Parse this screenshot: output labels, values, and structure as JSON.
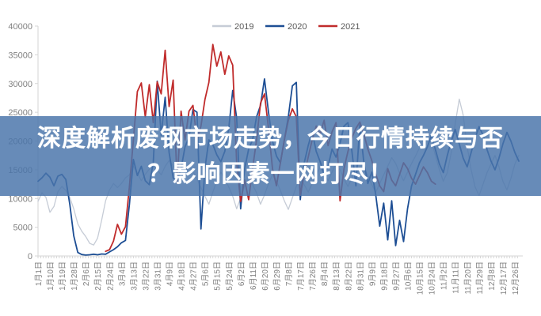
{
  "banner": {
    "line1": "深度解析废钢市场走势，今日行情持续与否",
    "line2": "？影响因素一网打尽！",
    "background_color": "#4a75aa",
    "text_color": "#ffffff"
  },
  "chart_data": {
    "type": "line",
    "title": "",
    "grid": false,
    "legend_position": "top-center",
    "legend": [
      "2019",
      "2020",
      "2021"
    ],
    "ylim": [
      0,
      40000
    ],
    "y_tick_step": 5000,
    "y_tick_labels": [
      "40000",
      "35000",
      "30000",
      "25000",
      "20000",
      "15000",
      "10000",
      "5000",
      "0"
    ],
    "x_tick_labels": [
      "1月1日",
      "1月10日",
      "1月19日",
      "1月28日",
      "2月6日",
      "2月15日",
      "2月24日",
      "3月4日",
      "3月13日",
      "3月22日",
      "3月31日",
      "4月9日",
      "4月18日",
      "4月27日",
      "5月6日",
      "5月15日",
      "5月24日",
      "6月2日",
      "6月11日",
      "6月20日",
      "6月29日",
      "7月8日",
      "7月17日",
      "7月26日",
      "8月4日",
      "8月13日",
      "8月22日",
      "8月31日",
      "9月9日",
      "9月18日",
      "9月27日",
      "10月6日",
      "10月15日",
      "10月24日",
      "11月2日",
      "11月11日",
      "11月20日",
      "11月29日",
      "12月8日",
      "12月17日",
      "12月26日"
    ],
    "x_tick_interval_days": 9,
    "days_per_point": 3,
    "axis_color": "#d6d6d6",
    "label_color": "#808080",
    "legend_text_color": "#595959",
    "series": [
      {
        "name": "2019",
        "color": "#c6ccd6",
        "values": [
          9500,
          11000,
          10200,
          7600,
          8600,
          11200,
          12100,
          11400,
          10200,
          8200,
          5600,
          4300,
          3400,
          2200,
          1900,
          3100,
          6200,
          9600,
          11500,
          12600,
          11900,
          12600,
          13600,
          14100,
          15600,
          14400,
          13100,
          14200,
          15100,
          16100,
          15000,
          14100,
          15600,
          16600,
          15700,
          14400,
          13400,
          14600,
          15500,
          14700,
          13400,
          11900,
          10400,
          9000,
          11100,
          13100,
          14600,
          13400,
          12000,
          10400,
          8200,
          10100,
          12100,
          13600,
          12400,
          11000,
          9000,
          10600,
          12600,
          14100,
          13000,
          11400,
          9600,
          8100,
          10100,
          12100,
          13600,
          12400,
          11100,
          12600,
          14100,
          15400,
          14400,
          13100,
          14600,
          16100,
          15000,
          13400,
          12100,
          13600,
          15100,
          16400,
          15400,
          14000,
          12400,
          11100,
          12600,
          14100,
          15600,
          17100,
          16100,
          14400,
          13100,
          14600,
          16100,
          17400,
          18800,
          20500,
          22000,
          20000,
          17500,
          15000,
          13000,
          14500,
          18000,
          23000,
          27300,
          24500,
          19000,
          15000,
          12000,
          10500,
          12500,
          14500,
          16000,
          17500,
          15500,
          13000,
          11500,
          13500,
          16000,
          17500
        ]
      },
      {
        "name": "2020",
        "color": "#1d4e94",
        "values": [
          13000,
          13600,
          14400,
          13700,
          12200,
          13900,
          14200,
          13300,
          9000,
          3500,
          600,
          250,
          150,
          200,
          300,
          200,
          350,
          300,
          700,
          1100,
          1600,
          2300,
          2700,
          9000,
          16800,
          14000,
          15600,
          13100,
          12400,
          16200,
          30400,
          21000,
          27600,
          18000,
          13600,
          13000,
          15200,
          19000,
          20600,
          25500,
          25000,
          4700,
          15200,
          20200,
          19400,
          17600,
          16400,
          18200,
          22200,
          28800,
          24000,
          8200,
          15200,
          18600,
          20200,
          24200,
          26200,
          30800,
          25000,
          20000,
          17400,
          16200,
          20200,
          24200,
          29600,
          30200,
          9800,
          16200,
          19200,
          21600,
          18200,
          16400,
          14200,
          15600,
          18600,
          17200,
          19600,
          22600,
          23200,
          18200,
          12200,
          22800,
          16200,
          12600,
          14600,
          10600,
          5200,
          9200,
          2800,
          9600,
          1800,
          6200,
          2500,
          8200,
          12200,
          14200,
          16200,
          17500,
          19000,
          21000,
          18500,
          16000,
          14500,
          17500,
          20000,
          22000,
          19500,
          17000,
          15500,
          18000,
          20500,
          22500,
          21000,
          18500,
          16500,
          15000,
          17000,
          19500,
          21500,
          20000,
          18000,
          16500
        ]
      },
      {
        "name": "2021",
        "color": "#c02b2b",
        "values": [
          null,
          null,
          null,
          null,
          null,
          null,
          null,
          null,
          null,
          null,
          null,
          null,
          null,
          null,
          null,
          null,
          null,
          800,
          1100,
          2600,
          5500,
          3800,
          5100,
          12100,
          20200,
          28600,
          30100,
          24200,
          29800,
          23200,
          30300,
          28200,
          35800,
          26000,
          30600,
          12600,
          25200,
          20200,
          25200,
          26200,
          20200,
          22600,
          27200,
          30200,
          36800,
          33000,
          35500,
          31600,
          34800,
          33200,
          16200,
          9500,
          13200,
          9800,
          15200,
          20200,
          26600,
          28200,
          22200,
          15200,
          12200,
          16200,
          20200,
          23600,
          25600,
          24200,
          10600,
          14200,
          17200,
          20200,
          22600,
          21200,
          23600,
          19200,
          21600,
          23200,
          9600,
          15200,
          18200,
          20600,
          22200,
          23300,
          21200,
          18600,
          16600,
          14200,
          12200,
          11200,
          15200,
          13200,
          12200,
          14200,
          16200,
          15200,
          13500,
          12500,
          14000,
          15500,
          14500,
          13000,
          12500,
          null,
          null,
          null,
          null,
          null,
          null,
          null,
          null,
          null,
          null,
          null,
          null,
          null,
          null,
          null,
          null,
          null,
          null,
          null,
          null,
          null
        ]
      }
    ]
  }
}
